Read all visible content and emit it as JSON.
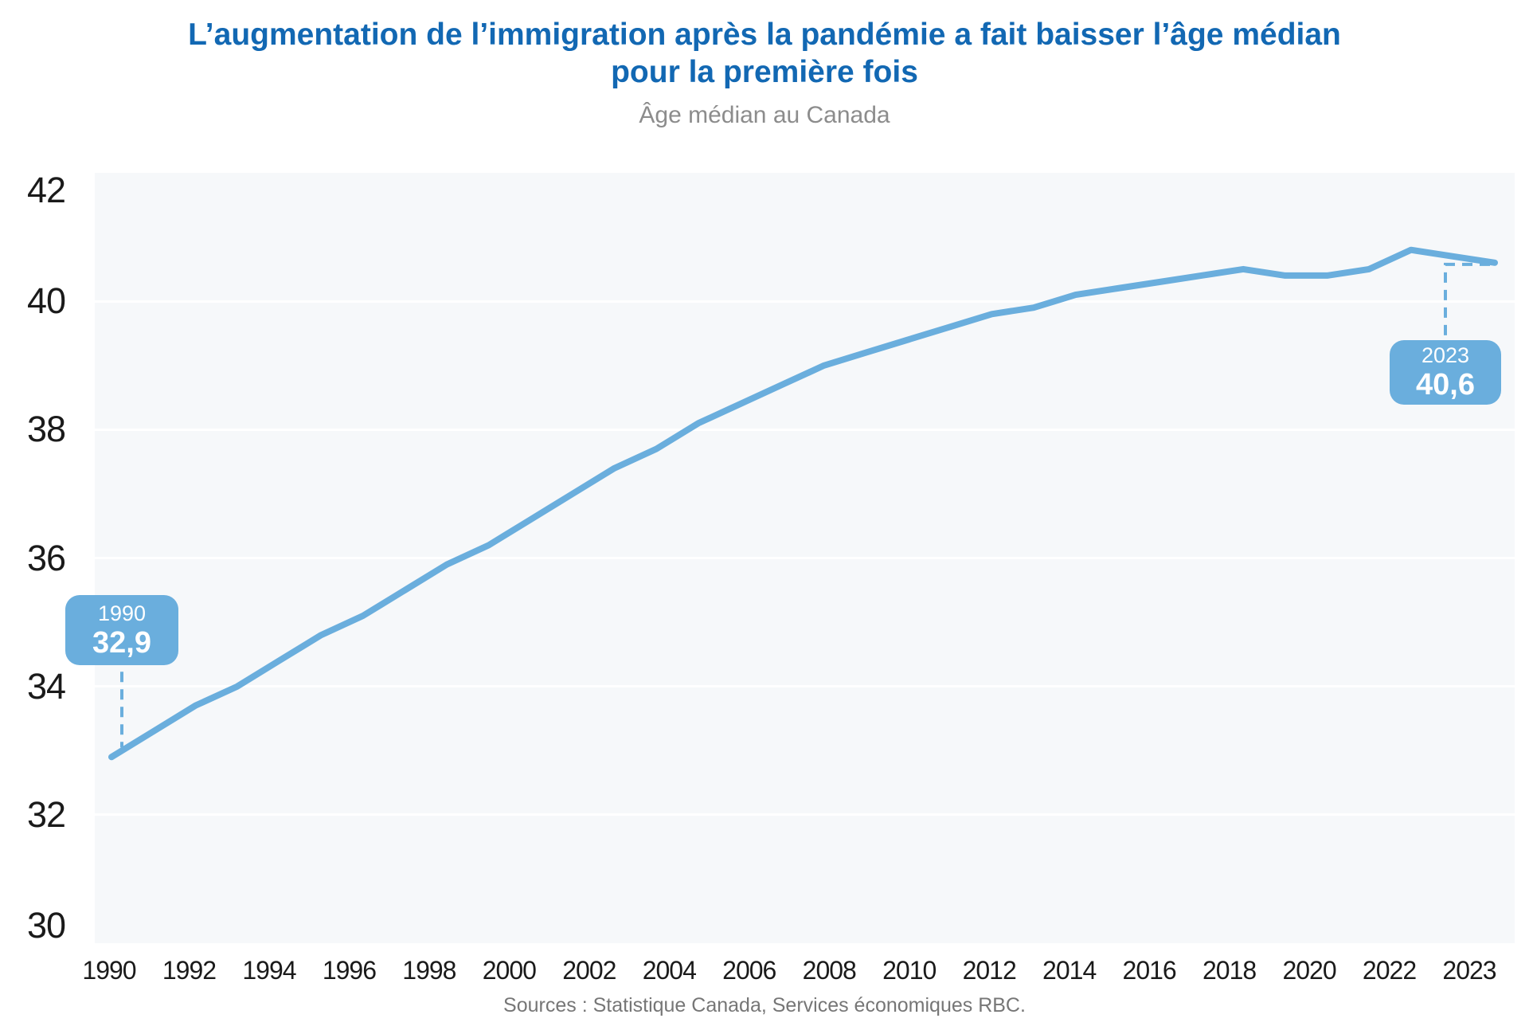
{
  "header": {
    "title": "L’augmentation de l’immigration après la pandémie a fait baisser l’âge médian pour la première fois",
    "subtitle": "Âge médian au Canada"
  },
  "footer": {
    "source": "Sources : Statistique Canada, Services économiques RBC."
  },
  "colors": {
    "title_blue": "#1268B3",
    "line_blue": "#6AAEDD",
    "plot_background": "#F6F8FA",
    "gridline_white": "#FFFFFF",
    "axis_text": "#1A1A1A",
    "subtitle_gray": "#8C8C8C",
    "source_gray": "#767676"
  },
  "chart_data": {
    "type": "line",
    "title": "Âge médian au Canada",
    "series_name": "Âge médian",
    "x": [
      1990,
      1991,
      1992,
      1993,
      1994,
      1995,
      1996,
      1997,
      1998,
      1999,
      2000,
      2001,
      2002,
      2003,
      2004,
      2005,
      2006,
      2007,
      2008,
      2009,
      2010,
      2011,
      2012,
      2013,
      2014,
      2015,
      2016,
      2017,
      2018,
      2019,
      2020,
      2021,
      2022,
      2023
    ],
    "values": [
      32.9,
      33.3,
      33.7,
      34.0,
      34.4,
      34.8,
      35.1,
      35.5,
      35.9,
      36.2,
      36.6,
      37.0,
      37.4,
      37.7,
      38.1,
      38.4,
      38.7,
      39.0,
      39.2,
      39.4,
      39.6,
      39.8,
      39.9,
      40.1,
      40.2,
      40.3,
      40.4,
      40.5,
      40.4,
      40.4,
      40.5,
      40.8,
      40.7,
      40.6
    ],
    "ylim": [
      30,
      42
    ],
    "yticks": [
      42,
      40,
      38,
      36,
      34,
      32,
      30
    ],
    "xtick_labels": [
      "1990",
      "1992",
      "1994",
      "1996",
      "1998",
      "2000",
      "2002",
      "2004",
      "2006",
      "2008",
      "2010",
      "2012",
      "2014",
      "2016",
      "2018",
      "2020",
      "2022",
      "2023"
    ],
    "grid": "horizontal-white-on-gray",
    "legend": "none",
    "annotations": [
      {
        "year_label": "1990",
        "value_label": "32,9",
        "year": 1990,
        "value": 32.9
      },
      {
        "year_label": "2023",
        "value_label": "40,6",
        "year": 2023,
        "value": 40.6
      }
    ]
  }
}
